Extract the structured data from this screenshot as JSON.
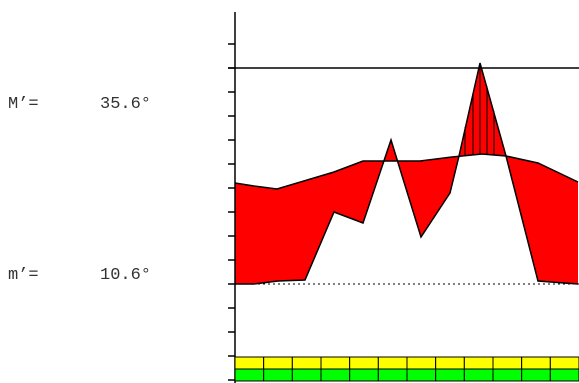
{
  "readouts": {
    "max_label": "M’=",
    "max_value": "35.6°",
    "min_label": "m’=",
    "min_value": "10.6°"
  },
  "colors": {
    "fill": "#ff0000",
    "line": "#000000",
    "bar_top": "#ffff00",
    "bar_bottom": "#00ff00",
    "background": "#ffffff"
  },
  "scale": {
    "min": 10.6,
    "max": 35.6,
    "unit": "°"
  }
}
